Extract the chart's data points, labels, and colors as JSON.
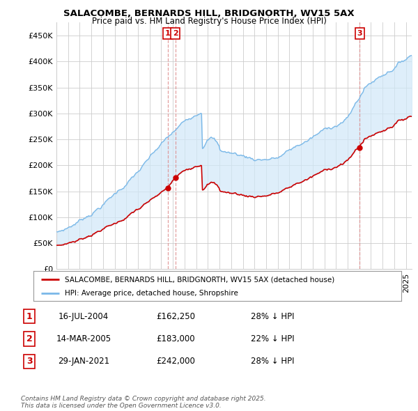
{
  "title1": "SALACOMBE, BERNARDS HILL, BRIDGNORTH, WV15 5AX",
  "title2": "Price paid vs. HM Land Registry's House Price Index (HPI)",
  "yticks": [
    0,
    50000,
    100000,
    150000,
    200000,
    250000,
    300000,
    350000,
    400000,
    450000
  ],
  "ylim": [
    0,
    475000
  ],
  "xlim_start": 1995.0,
  "xlim_end": 2025.5,
  "hpi_color": "#7ab8e8",
  "hpi_fill_color": "#d0e8f8",
  "sale_color": "#cc0000",
  "legend_label_sale": "SALACOMBE, BERNARDS HILL, BRIDGNORTH, WV15 5AX (detached house)",
  "legend_label_hpi": "HPI: Average price, detached house, Shropshire",
  "transaction1_date": "16-JUL-2004",
  "transaction1_price": "£162,250",
  "transaction1_pct": "28% ↓ HPI",
  "transaction2_date": "14-MAR-2005",
  "transaction2_price": "£183,000",
  "transaction2_pct": "22% ↓ HPI",
  "transaction3_date": "29-JAN-2021",
  "transaction3_price": "£242,000",
  "transaction3_pct": "28% ↓ HPI",
  "footer": "Contains HM Land Registry data © Crown copyright and database right 2025.\nThis data is licensed under the Open Government Licence v3.0.",
  "background_color": "#ffffff",
  "grid_color": "#cccccc"
}
